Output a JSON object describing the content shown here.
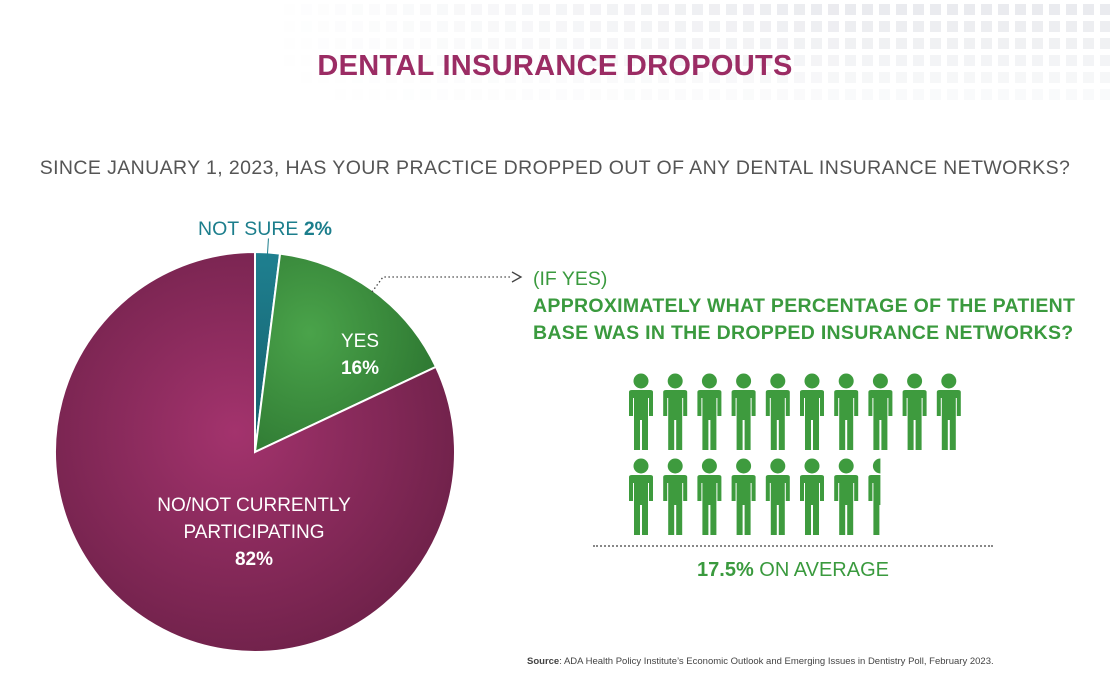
{
  "title": "DENTAL INSURANCE DROPOUTS",
  "question": "SINCE JANUARY 1, 2023, HAS YOUR PRACTICE DROPPED OUT OF ANY DENTAL INSURANCE NETWORKS?",
  "colors": {
    "title": "#9b2c64",
    "no": "#8b2a5f",
    "yes": "#3e8f40",
    "not_sure": "#1a7181",
    "green_text": "#3a9a3e",
    "people": "#3e9b3e"
  },
  "chart_data": [
    {
      "type": "pie",
      "title": "",
      "slices": [
        {
          "label": "NOT SURE",
          "value": 2,
          "value_label": "2%"
        },
        {
          "label": "YES",
          "value": 16,
          "value_label": "16%"
        },
        {
          "label": "NO/NOT CURRENTLY PARTICIPATING",
          "value": 82,
          "value_label": "82%"
        }
      ],
      "label_lines": {
        "no": [
          "NO/NOT CURRENTLY",
          "PARTICIPATING"
        ]
      }
    },
    {
      "type": "pictograph",
      "title_prefix": "(IF YES)",
      "title_lines": [
        "APPROXIMATELY WHAT PERCENTAGE OF THE PATIENT",
        "BASE WAS IN THE DROPPED INSURANCE NETWORKS?"
      ],
      "icon": "person-icon",
      "value": 17.5,
      "icon_unit": 1,
      "value_label": "17.5%",
      "value_suffix": "ON AVERAGE"
    }
  ],
  "source": {
    "label": "Source",
    "text": ": ADA Health Policy Institute’s Economic Outlook and Emerging Issues in Dentistry Poll, February 2023."
  }
}
